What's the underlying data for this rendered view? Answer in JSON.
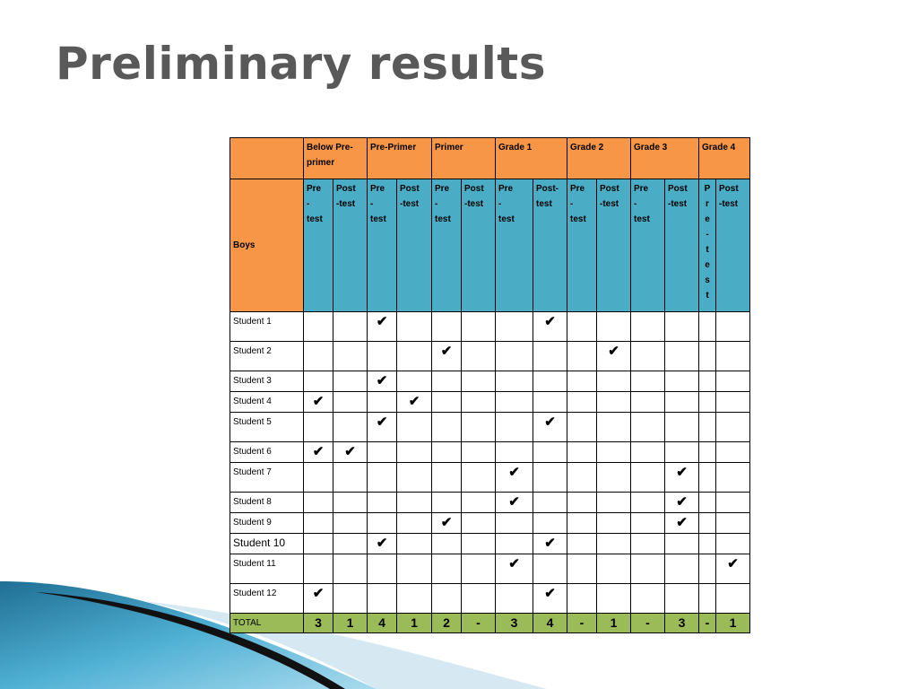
{
  "slide": {
    "title": "Preliminary results"
  },
  "table": {
    "corner_label": "",
    "group_headers": [
      "Below Pre-primer",
      "Pre-Primer",
      "Primer",
      "Grade 1",
      "Grade 2",
      "Grade 3",
      "Grade 4"
    ],
    "row_group_label": "Boys",
    "sub_headers": [
      "Pre-test",
      "Post-test",
      "Pre-test",
      "Post-test",
      "Pre-test",
      "Post-test",
      "Pre-test",
      "Post-test",
      "Pre-test",
      "Post-test",
      "Pre-test",
      "Post-test",
      "Pre-test",
      "Post-test"
    ],
    "check_mark": "✔",
    "rows": [
      {
        "label": "Student 1",
        "checks": [
          0,
          0,
          1,
          0,
          0,
          0,
          0,
          1,
          0,
          0,
          0,
          0,
          0,
          0
        ]
      },
      {
        "label": "Student 2",
        "checks": [
          0,
          0,
          0,
          0,
          1,
          0,
          0,
          0,
          0,
          1,
          0,
          0,
          0,
          0
        ]
      },
      {
        "label": "Student 3",
        "checks": [
          0,
          0,
          1,
          0,
          0,
          0,
          0,
          0,
          0,
          0,
          0,
          0,
          0,
          0
        ]
      },
      {
        "label": "Student 4",
        "checks": [
          1,
          0,
          0,
          1,
          0,
          0,
          0,
          0,
          0,
          0,
          0,
          0,
          0,
          0
        ]
      },
      {
        "label": "Student 5",
        "checks": [
          0,
          0,
          1,
          0,
          0,
          0,
          0,
          1,
          0,
          0,
          0,
          0,
          0,
          0
        ]
      },
      {
        "label": "Student 6",
        "checks": [
          1,
          1,
          0,
          0,
          0,
          0,
          0,
          0,
          0,
          0,
          0,
          0,
          0,
          0
        ]
      },
      {
        "label": "Student 7",
        "checks": [
          0,
          0,
          0,
          0,
          0,
          0,
          1,
          0,
          0,
          0,
          0,
          1,
          0,
          0
        ]
      },
      {
        "label": "Student 8",
        "checks": [
          0,
          0,
          0,
          0,
          0,
          0,
          1,
          0,
          0,
          0,
          0,
          1,
          0,
          0
        ]
      },
      {
        "label": "Student 9",
        "checks": [
          0,
          0,
          0,
          0,
          1,
          0,
          0,
          0,
          0,
          0,
          0,
          1,
          0,
          0
        ]
      },
      {
        "label": "Student 10",
        "checks": [
          0,
          0,
          1,
          0,
          0,
          0,
          0,
          1,
          0,
          0,
          0,
          0,
          0,
          0
        ]
      },
      {
        "label": "Student 11",
        "checks": [
          0,
          0,
          0,
          0,
          0,
          0,
          1,
          0,
          0,
          0,
          0,
          0,
          0,
          1
        ]
      },
      {
        "label": "Student 12",
        "checks": [
          1,
          0,
          0,
          0,
          0,
          0,
          0,
          1,
          0,
          0,
          0,
          0,
          0,
          0
        ]
      }
    ],
    "total_label": "TOTAL",
    "totals": [
      "3",
      "1",
      "4",
      "1",
      "2",
      "-",
      "3",
      "4",
      "-",
      "1",
      "-",
      "3",
      "-",
      "1"
    ]
  },
  "colors": {
    "header_orange": "#f79646",
    "subheader_blue": "#4bacc6",
    "total_green": "#9bbb59",
    "title_gray": "#595959"
  }
}
